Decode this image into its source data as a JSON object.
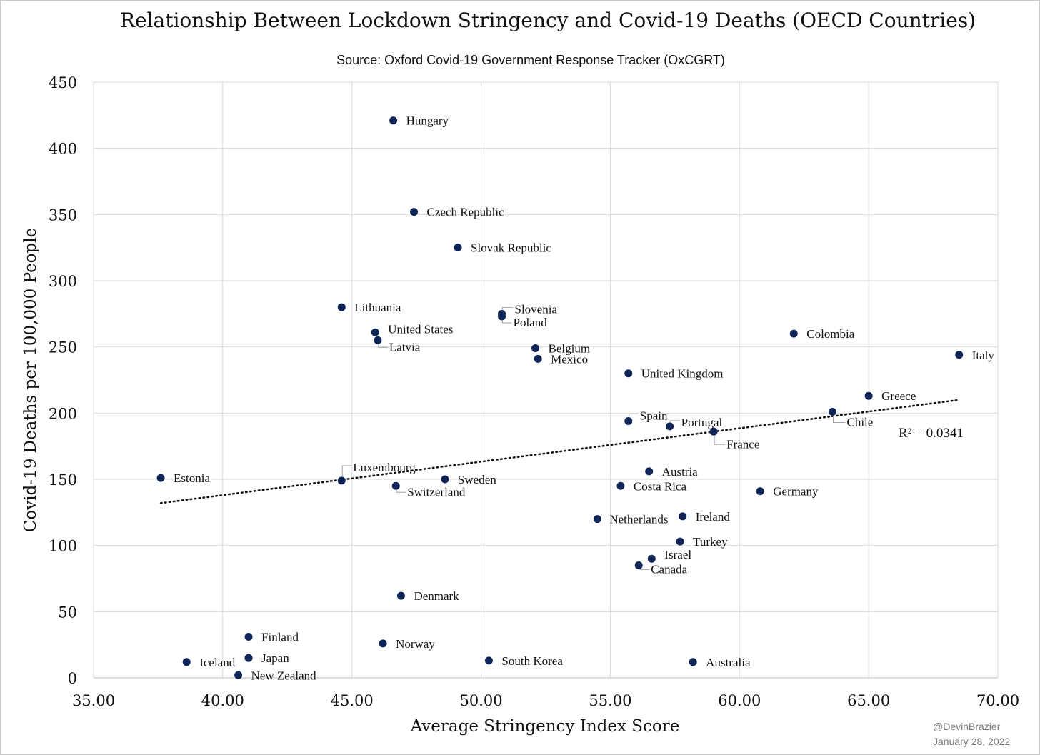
{
  "chart_data": {
    "type": "scatter",
    "title": "Relationship Between Lockdown Stringency and Covid-19 Deaths (OECD Countries)",
    "subtitle": "Source: Oxford Covid-19 Government Response Tracker (OxCGRT)",
    "xlabel": "Average Stringency Index Score",
    "ylabel": "Covid-19 Deaths per 100,000 People",
    "xlim": [
      35,
      70
    ],
    "ylim": [
      0,
      450
    ],
    "xticks": [
      "35.00",
      "40.00",
      "45.00",
      "50.00",
      "55.00",
      "60.00",
      "65.00",
      "70.00"
    ],
    "yticks": [
      "0",
      "50",
      "100",
      "150",
      "200",
      "250",
      "300",
      "350",
      "400",
      "450"
    ],
    "grid": true,
    "marker_color": "#0f2557",
    "trendline": {
      "x": [
        37.6,
        68.5
      ],
      "y": [
        132,
        210
      ],
      "style": "dotted",
      "label": "R² = 0.0341"
    },
    "points": [
      {
        "name": "Hungary",
        "x": 46.6,
        "y": 421
      },
      {
        "name": "Czech Republic",
        "x": 47.4,
        "y": 352
      },
      {
        "name": "Slovak Republic",
        "x": 49.1,
        "y": 325
      },
      {
        "name": "Lithuania",
        "x": 44.6,
        "y": 280
      },
      {
        "name": "Slovenia",
        "x": 50.8,
        "y": 275
      },
      {
        "name": "Poland",
        "x": 50.8,
        "y": 273
      },
      {
        "name": "United States",
        "x": 45.9,
        "y": 261
      },
      {
        "name": "Latvia",
        "x": 46.0,
        "y": 255
      },
      {
        "name": "Belgium",
        "x": 52.1,
        "y": 249
      },
      {
        "name": "Mexico",
        "x": 52.2,
        "y": 241
      },
      {
        "name": "Colombia",
        "x": 62.1,
        "y": 260
      },
      {
        "name": "Italy",
        "x": 68.5,
        "y": 244
      },
      {
        "name": "United Kingdom",
        "x": 55.7,
        "y": 230
      },
      {
        "name": "Greece",
        "x": 65.0,
        "y": 213
      },
      {
        "name": "Chile",
        "x": 63.6,
        "y": 201
      },
      {
        "name": "Spain",
        "x": 55.7,
        "y": 194
      },
      {
        "name": "Portugal",
        "x": 57.3,
        "y": 190
      },
      {
        "name": "France",
        "x": 59.0,
        "y": 186
      },
      {
        "name": "Estonia",
        "x": 37.6,
        "y": 151
      },
      {
        "name": "Luxembourg",
        "x": 44.6,
        "y": 149
      },
      {
        "name": "Sweden",
        "x": 48.6,
        "y": 150
      },
      {
        "name": "Switzerland",
        "x": 46.7,
        "y": 145
      },
      {
        "name": "Austria",
        "x": 56.5,
        "y": 156
      },
      {
        "name": "Costa Rica",
        "x": 55.4,
        "y": 145
      },
      {
        "name": "Germany",
        "x": 60.8,
        "y": 141
      },
      {
        "name": "Netherlands",
        "x": 54.5,
        "y": 120
      },
      {
        "name": "Ireland",
        "x": 57.8,
        "y": 122
      },
      {
        "name": "Turkey",
        "x": 57.7,
        "y": 103
      },
      {
        "name": "Israel",
        "x": 56.6,
        "y": 90
      },
      {
        "name": "Canada",
        "x": 56.1,
        "y": 85
      },
      {
        "name": "Denmark",
        "x": 46.9,
        "y": 62
      },
      {
        "name": "Finland",
        "x": 41.0,
        "y": 31
      },
      {
        "name": "Norway",
        "x": 46.2,
        "y": 26
      },
      {
        "name": "Japan",
        "x": 41.0,
        "y": 15
      },
      {
        "name": "Iceland",
        "x": 38.6,
        "y": 12
      },
      {
        "name": "New Zealand",
        "x": 40.6,
        "y": 2
      },
      {
        "name": "South Korea",
        "x": 50.3,
        "y": 13
      },
      {
        "name": "Australia",
        "x": 58.2,
        "y": 12
      }
    ]
  },
  "credit": {
    "handle": "@DevinBrazier",
    "date": "January 28, 2022"
  }
}
